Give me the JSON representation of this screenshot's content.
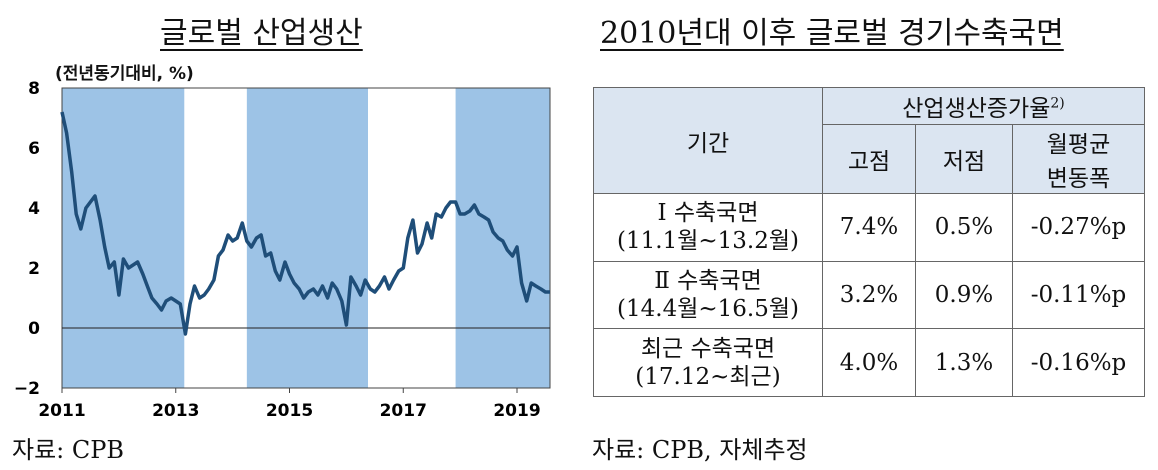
{
  "left": {
    "title": "글로벌 산업생산",
    "source": "자료: CPB"
  },
  "right": {
    "title": "2010년대 이후 글로벌 경기수축국면",
    "source": "자료: CPB, 자체추정",
    "table": {
      "col_period": "기간",
      "col_group": "산업생산증가율",
      "col_group_sup": "2)",
      "col_peak": "고점",
      "col_trough": "저점",
      "col_monthly_line1": "월평균",
      "col_monthly_line2": "변동폭",
      "rows": [
        {
          "name": "Ⅰ 수축국면",
          "range": "(11.1월~13.2월)",
          "peak": "7.4%",
          "trough": "0.5%",
          "monthly": "-0.27%p"
        },
        {
          "name": "Ⅱ 수축국면",
          "range": "(14.4월~16.5월)",
          "peak": "3.2%",
          "trough": "0.9%",
          "monthly": "-0.11%p"
        },
        {
          "name": "최근 수축국면",
          "range": "(17.12~최근)",
          "peak": "4.0%",
          "trough": "1.3%",
          "monthly": "-0.16%p"
        }
      ]
    }
  },
  "chart_data": {
    "type": "line",
    "ylabel": "(전년동기대비, %)",
    "ylim": [
      -2,
      8
    ],
    "yticks": [
      -2,
      0,
      2,
      4,
      6,
      8
    ],
    "xlim": [
      2011.0,
      2019.58
    ],
    "xticks": [
      2011,
      2013,
      2015,
      2017,
      2019
    ],
    "xtick_labels": [
      "2011",
      "2013",
      "2015",
      "2017",
      "2019"
    ],
    "line_color": "#1f4e79",
    "shade_color": "#9dc3e6",
    "shaded_periods": [
      [
        2011.0,
        2013.15
      ],
      [
        2014.25,
        2016.38
      ],
      [
        2017.92,
        2019.58
      ]
    ],
    "series": [
      {
        "x": [
          2011.0,
          2011.08,
          2011.17,
          2011.25,
          2011.33,
          2011.42,
          2011.5,
          2011.58,
          2011.67,
          2011.75,
          2011.83,
          2011.92,
          2012.0,
          2012.08,
          2012.17,
          2012.25,
          2012.33,
          2012.42,
          2012.5,
          2012.58,
          2012.67,
          2012.75,
          2012.83,
          2012.92,
          2013.0,
          2013.08,
          2013.17,
          2013.25,
          2013.33,
          2013.42,
          2013.5,
          2013.58,
          2013.67,
          2013.75,
          2013.83,
          2013.92,
          2014.0,
          2014.08,
          2014.17,
          2014.25,
          2014.33,
          2014.42,
          2014.5,
          2014.58,
          2014.67,
          2014.75,
          2014.83,
          2014.92,
          2015.0,
          2015.08,
          2015.17,
          2015.25,
          2015.33,
          2015.42,
          2015.5,
          2015.58,
          2015.67,
          2015.75,
          2015.83,
          2015.92,
          2016.0,
          2016.08,
          2016.17,
          2016.25,
          2016.33,
          2016.42,
          2016.5,
          2016.58,
          2016.67,
          2016.75,
          2016.83,
          2016.92,
          2017.0,
          2017.08,
          2017.17,
          2017.25,
          2017.33,
          2017.42,
          2017.5,
          2017.58,
          2017.67,
          2017.75,
          2017.83,
          2017.92,
          2018.0,
          2018.08,
          2018.17,
          2018.25,
          2018.33,
          2018.42,
          2018.5,
          2018.58,
          2018.67,
          2018.75,
          2018.83,
          2018.92,
          2019.0,
          2019.08,
          2019.17,
          2019.25,
          2019.33,
          2019.42,
          2019.5,
          2019.58
        ],
        "y": [
          7.2,
          6.5,
          5.2,
          3.8,
          3.3,
          4.0,
          4.2,
          4.4,
          3.6,
          2.7,
          2.0,
          2.2,
          1.1,
          2.3,
          2.0,
          2.1,
          2.2,
          1.8,
          1.4,
          1.0,
          0.8,
          0.6,
          0.9,
          1.0,
          0.9,
          0.8,
          -0.2,
          0.8,
          1.4,
          1.0,
          1.1,
          1.3,
          1.6,
          2.4,
          2.6,
          3.1,
          2.9,
          3.0,
          3.5,
          2.9,
          2.7,
          3.0,
          3.1,
          2.4,
          2.5,
          1.9,
          1.6,
          2.2,
          1.8,
          1.5,
          1.3,
          1.0,
          1.2,
          1.3,
          1.1,
          1.4,
          1.0,
          1.5,
          1.3,
          0.9,
          0.1,
          1.7,
          1.4,
          1.1,
          1.6,
          1.3,
          1.2,
          1.4,
          1.7,
          1.3,
          1.6,
          1.9,
          2.0,
          3.0,
          3.6,
          2.5,
          2.8,
          3.5,
          3.0,
          3.8,
          3.7,
          4.0,
          4.2,
          4.2,
          3.8,
          3.8,
          3.9,
          4.1,
          3.8,
          3.7,
          3.6,
          3.2,
          3.0,
          2.9,
          2.6,
          2.4,
          2.7,
          1.5,
          0.9,
          1.5,
          1.4,
          1.3,
          1.2,
          1.2
        ]
      }
    ]
  }
}
